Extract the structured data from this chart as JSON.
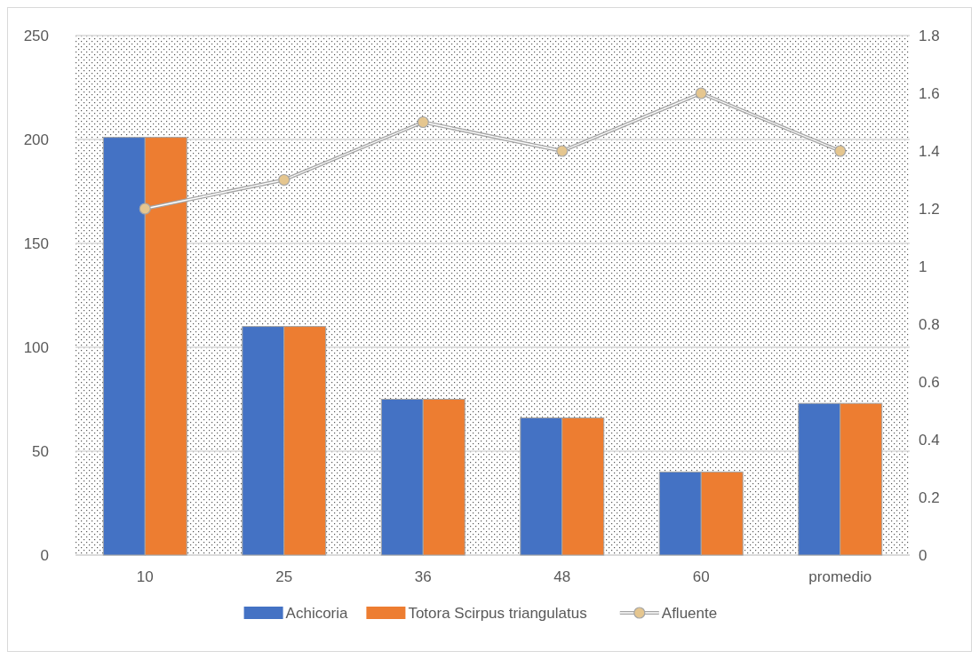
{
  "chart_data": {
    "type": "bar",
    "categories": [
      "10",
      "25",
      "36",
      "48",
      "60",
      "promedio"
    ],
    "series": [
      {
        "name": "Achicoria",
        "color": "#4472c4",
        "values": [
          201,
          110,
          75,
          66,
          40,
          73
        ]
      },
      {
        "name": "Totora Scirpus triangulatus",
        "color": "#ed7d31",
        "values": [
          201,
          110,
          75,
          66,
          40,
          73
        ]
      },
      {
        "name": "Afluente",
        "type": "line",
        "axis": "y2",
        "color": "#a5a5a5",
        "values": [
          1.2,
          1.3,
          1.5,
          1.4,
          1.6,
          1.4
        ]
      }
    ],
    "ylim": [
      0,
      250
    ],
    "yticks": [
      0,
      50,
      100,
      150,
      200,
      250
    ],
    "y2lim": [
      0,
      1.8
    ],
    "y2ticks": [
      0,
      0.2,
      0.4,
      0.6,
      0.8,
      1,
      1.2,
      1.4,
      1.6,
      1.8
    ],
    "grid": "y",
    "legend": "bottom",
    "marker": "circle"
  }
}
